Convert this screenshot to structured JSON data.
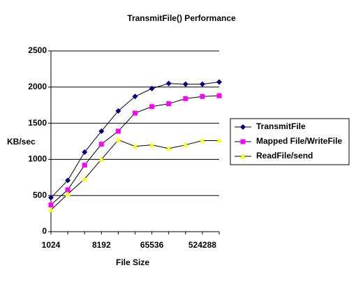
{
  "chart_data": {
    "type": "line",
    "title": "TransmitFile() Performance",
    "x_label": "File Size",
    "y_label": "KB/sec",
    "categories": [
      "1024",
      null,
      null,
      "8192",
      null,
      null,
      "65536",
      null,
      null,
      "524288",
      null
    ],
    "series": [
      {
        "name": "TransmitFile",
        "color": "#000080",
        "marker": "diamond",
        "values": [
          470,
          710,
          1100,
          1390,
          1670,
          1870,
          1980,
          2050,
          2040,
          2040,
          2070
        ]
      },
      {
        "name": "Mapped File/WriteFile",
        "color": "#ff00ff",
        "marker": "square",
        "values": [
          370,
          580,
          920,
          1210,
          1390,
          1640,
          1730,
          1770,
          1840,
          1870,
          1880
        ]
      },
      {
        "name": "ReadFile/send",
        "color": "#ffff00",
        "marker": "triangle",
        "values": [
          300,
          520,
          730,
          1000,
          1270,
          1180,
          1200,
          1150,
          1200,
          1260,
          1260
        ]
      }
    ],
    "ylim": [
      0,
      2500
    ],
    "yticks": [
      0,
      500,
      1000,
      1500,
      2000,
      2500
    ],
    "grid": true,
    "legend": "right"
  }
}
